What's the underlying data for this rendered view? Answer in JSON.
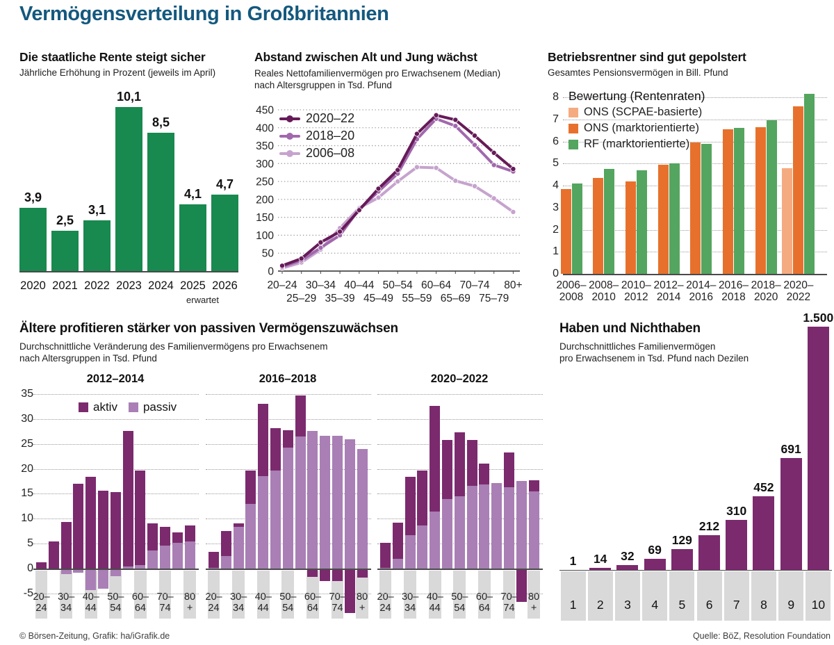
{
  "title": "Vermögensverteilung in Großbritannien",
  "footer": {
    "left": "© Börsen-Zeitung, Grafik: ha/iGrafik.de",
    "right": "Quelle: BöZ, Resolution Foundation"
  },
  "colors": {
    "title_blue": "#14587E",
    "green_state_pension": "#18894F",
    "orange_market": "#E7712C",
    "peach_scpae": "#F5AB80",
    "green_rf": "#54A55F",
    "purple_dark": "#7B2A6E",
    "purple_light": "#A97FB5",
    "line_dark": "#661B58",
    "line_medium": "#A168AD",
    "line_light": "#C6A3CE",
    "grey_box": "#D9D9D9"
  },
  "chart_data": [
    {
      "id": "rente",
      "type": "bar",
      "title": "Die staatliche Rente steigt sicher",
      "subtitle": "Jährliche Erhöhung in Prozent (jeweils im April)",
      "categories": [
        "2020",
        "2021",
        "2022",
        "2023",
        "2024",
        "2025",
        "2026"
      ],
      "values": [
        3.9,
        2.5,
        3.1,
        10.1,
        8.5,
        4.1,
        4.7
      ],
      "value_labels": [
        "3,9",
        "2,5",
        "3,1",
        "10,1",
        "8,5",
        "4,1",
        "4,7"
      ],
      "note": "erwartet",
      "ylim": [
        0,
        10.5
      ],
      "bar_color": "#18894F"
    },
    {
      "id": "abstand",
      "type": "line",
      "title": "Abstand zwischen Alt und Jung wächst",
      "subtitle1": "Reales Nettofamilienvermögen pro Erwachsenem (Median)",
      "subtitle2": "nach Altersgruppen in Tsd. Pfund",
      "categories": [
        "20–24",
        "25–29",
        "30–34",
        "35–39",
        "40–44",
        "45–49",
        "50–54",
        "55–59",
        "60–64",
        "65–69",
        "70–74",
        "75–79",
        "80+"
      ],
      "series": [
        {
          "name": "2020–22",
          "color": "#661B58",
          "values": [
            15,
            35,
            80,
            110,
            170,
            230,
            282,
            383,
            435,
            422,
            378,
            330,
            285
          ]
        },
        {
          "name": "2018–20",
          "color": "#A168AD",
          "values": [
            12,
            30,
            65,
            100,
            173,
            222,
            272,
            368,
            425,
            405,
            352,
            296,
            278
          ]
        },
        {
          "name": "2006–08",
          "color": "#C6A3CE",
          "values": [
            8,
            24,
            60,
            120,
            176,
            205,
            250,
            290,
            288,
            252,
            237,
            203,
            165
          ]
        }
      ],
      "ylim": [
        0,
        450
      ],
      "ytick_step": 50,
      "grid": true,
      "legend_position": "top-left"
    },
    {
      "id": "pension",
      "type": "grouped-bar",
      "title": "Betriebsrentner sind gut gepolstert",
      "subtitle": "Gesamtes Pensionsvermögen in Bill. Pfund",
      "legend_title": "Bewertung (Rentenraten)",
      "categories": [
        [
          "2006–",
          "2008"
        ],
        [
          "2008–",
          "2010"
        ],
        [
          "2010–",
          "2012"
        ],
        [
          "2012–",
          "2014"
        ],
        [
          "2014–",
          "2016"
        ],
        [
          "2016–",
          "2018"
        ],
        [
          "2018–",
          "2020"
        ],
        [
          "2020–",
          "2022"
        ]
      ],
      "series": [
        {
          "name": "ONS (SCPAE-basierte)",
          "color": "#F5AB80",
          "values": [
            null,
            null,
            null,
            null,
            null,
            null,
            null,
            4.8
          ]
        },
        {
          "name": "ONS (marktorientierte)",
          "color": "#E7712C",
          "values": [
            3.85,
            4.35,
            4.2,
            4.95,
            5.95,
            6.55,
            6.65,
            7.6
          ]
        },
        {
          "name": "RF (marktorientierte)",
          "color": "#54A55F",
          "values": [
            4.1,
            4.75,
            4.7,
            5.0,
            5.9,
            6.6,
            6.95,
            8.15
          ]
        }
      ],
      "ylim": [
        0,
        8
      ],
      "ytick_step": 1
    },
    {
      "id": "zuwachs",
      "type": "stacked-bar-panels",
      "title": "Ältere profitieren stärker von passiven Vermögenszuwächsen",
      "subtitle1": "Durchschnittliche Veränderung des Familienvermögens pro Erwachsenem",
      "subtitle2": "nach Altersgruppen in Tsd. Pfund",
      "ylim": [
        -5,
        35
      ],
      "ytick_step": 5,
      "legend": [
        {
          "name": "aktiv",
          "color": "#7B2A6E"
        },
        {
          "name": "passiv",
          "color": "#A97FB5"
        }
      ],
      "tick_labels": [
        [
          "20–",
          "24"
        ],
        [
          "30–",
          "34"
        ],
        [
          "40–",
          "44"
        ],
        [
          "50–",
          "54"
        ],
        [
          "60–",
          "64"
        ],
        [
          "70–",
          "74"
        ],
        [
          "80",
          "+"
        ]
      ],
      "age_groups": [
        "20–24",
        "25–29",
        "30–34",
        "35–39",
        "40–44",
        "45–49",
        "50–54",
        "55–59",
        "60–64",
        "65–69",
        "70–74",
        "75–79",
        "80+"
      ],
      "panels": [
        {
          "label": "2012–2014",
          "aktiv": [
            1.3,
            5.4,
            9.3,
            17.0,
            18.4,
            15.6,
            15.3,
            27.2,
            18.9,
            5.4,
            3.8,
            2.1,
            3.1
          ],
          "passiv": [
            0,
            0,
            -0.8,
            -0.5,
            -4.0,
            -3.7,
            -1.2,
            0.4,
            0.7,
            3.6,
            4.6,
            5.2,
            5.5
          ]
        },
        {
          "label": "2016–2018",
          "aktiv": [
            3.1,
            5.0,
            0.7,
            6.6,
            14.6,
            8.5,
            3.6,
            8.2,
            -1.4,
            -2.3,
            -2.2,
            -8.6,
            -1.5
          ],
          "passiv": [
            0.2,
            2.5,
            8.3,
            13.0,
            18.5,
            19.7,
            24.2,
            26.5,
            27.6,
            26.7,
            26.7,
            26.0,
            24.0
          ]
        },
        {
          "label": "2020–2022",
          "aktiv": [
            4.9,
            7.2,
            11.7,
            10.9,
            21.2,
            11.9,
            12.8,
            9.2,
            4.2,
            0,
            7.0,
            -6.4,
            2.2
          ],
          "passiv": [
            0.2,
            2.0,
            6.7,
            8.7,
            11.4,
            13.9,
            14.5,
            16.6,
            16.9,
            17.2,
            16.3,
            17.6,
            15.5
          ]
        }
      ]
    },
    {
      "id": "dezile",
      "type": "bar",
      "title": "Haben und Nichthaben",
      "subtitle1": "Durchschnittliches Familienvermögen",
      "subtitle2": "pro Erwachsenem in Tsd. Pfund nach Dezilen",
      "categories": [
        "1",
        "2",
        "3",
        "4",
        "5",
        "6",
        "7",
        "8",
        "9",
        "10"
      ],
      "values": [
        1,
        14,
        32,
        69,
        129,
        212,
        310,
        452,
        691,
        1500
      ],
      "value_labels": [
        "1",
        "14",
        "32",
        "69",
        "129",
        "212",
        "310",
        "452",
        "691",
        "1.500"
      ],
      "ylim": [
        0,
        1550
      ],
      "bar_color": "#7B2A6E"
    }
  ]
}
